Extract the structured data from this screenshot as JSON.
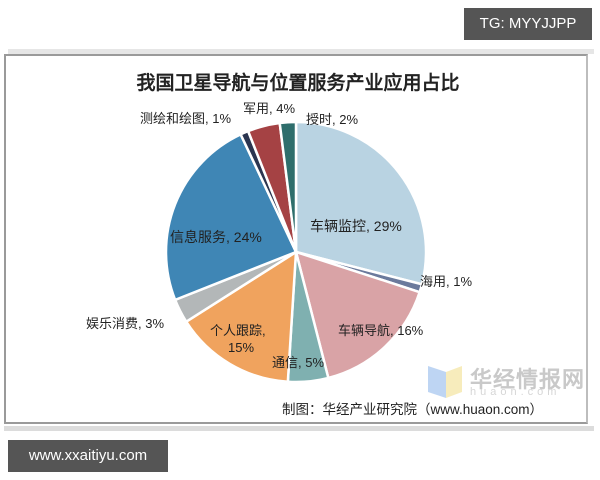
{
  "badges": {
    "top_right": "TG: MYYJJPP",
    "bottom_left": "www.xxaitiyu.com"
  },
  "chart": {
    "title": "我国卫星导航与位置服务产业应用占比",
    "credit": "制图：华经产业研究院（www.huaon.com）",
    "watermark": {
      "name": "华经情报网",
      "domain": "huaon.com"
    },
    "labels": {
      "s0": "车辆监控, 29%",
      "s1": "海用, 1%",
      "s2": "车辆导航, 16%",
      "s3": "通信, 5%",
      "s4a": "个人跟踪,",
      "s4b": "15%",
      "s5": "娱乐消费, 3%",
      "s6": "信息服务, 24%",
      "s7": "测绘和绘图, 1%",
      "s8": "军用, 4%",
      "s9": "授时, 2%"
    }
  },
  "chart_data": {
    "type": "pie",
    "title": "我国卫星导航与位置服务产业应用占比",
    "categories": [
      "车辆监控",
      "海用",
      "车辆导航",
      "通信",
      "个人跟踪",
      "娱乐消费",
      "信息服务",
      "测绘和绘图",
      "军用",
      "授时"
    ],
    "values": [
      29,
      1,
      16,
      5,
      15,
      3,
      24,
      1,
      4,
      2
    ],
    "unit": "%",
    "colors": [
      "#b9d3e2",
      "#6b7a9c",
      "#d9a3a6",
      "#7fb0b0",
      "#f0a35e",
      "#b3b7b8",
      "#3f86b5",
      "#2b3550",
      "#a54244",
      "#2e6e6c"
    ],
    "start_angle": "12 o'clock, clockwise",
    "legend": "none (data labels on/near slices)",
    "source": "制图：华经产业研究院（www.huaon.com）"
  }
}
